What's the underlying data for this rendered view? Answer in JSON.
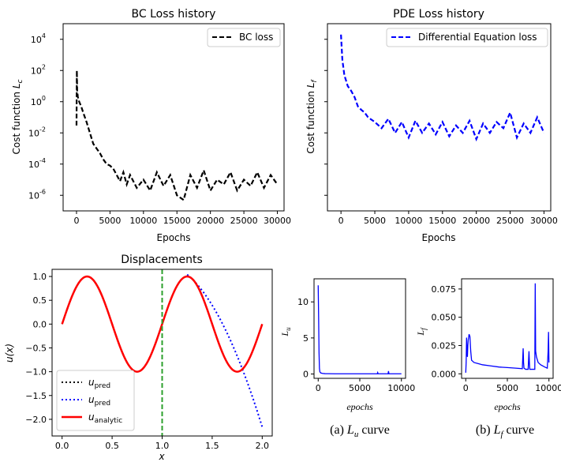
{
  "chart_data": [
    {
      "id": "bc",
      "type": "line",
      "title": "BC Loss history",
      "xlabel": "Epochs",
      "ylabel": "Cost function L_c",
      "yscale": "log",
      "xlim": [
        -2000,
        31000
      ],
      "ylim": [
        1e-07,
        100000.0
      ],
      "xticks": [
        0,
        5000,
        10000,
        15000,
        20000,
        25000,
        30000
      ],
      "ytick_labels": [
        "10",
        "10",
        "10",
        "10",
        "10",
        "10"
      ],
      "ytick_exps": [
        "-6",
        "-4",
        "-2",
        "0",
        "2",
        "4"
      ],
      "ytick_values": [
        1e-06,
        0.0001,
        0.01,
        1,
        100,
        10000
      ],
      "legend_position": "top-right",
      "series": [
        {
          "name": "BC loss",
          "color": "#000000",
          "style": "dashed",
          "x": [
            0,
            50,
            100,
            200,
            400,
            700,
            1000,
            1500,
            2000,
            2500,
            3000,
            3500,
            4000,
            4500,
            5000,
            5500,
            6000,
            6500,
            7000,
            7500,
            8000,
            9000,
            10000,
            11000,
            12000,
            13000,
            14000,
            15000,
            16000,
            17000,
            18000,
            19000,
            20000,
            21000,
            22000,
            23000,
            24000,
            25000,
            26000,
            27000,
            28000,
            29000,
            30000
          ],
          "y": [
            0.03,
            100,
            5,
            2,
            1,
            0.5,
            0.2,
            0.05,
            0.01,
            0.002,
            0.001,
            0.0005,
            0.0002,
            0.0001,
            8e-05,
            5e-05,
            2e-05,
            8e-06,
            3e-05,
            5e-06,
            2e-05,
            3e-06,
            1e-05,
            2e-06,
            3e-05,
            4e-06,
            2e-05,
            1e-06,
            5e-07,
            2e-05,
            3e-06,
            4e-05,
            2e-06,
            1e-05,
            5e-06,
            3e-05,
            2e-06,
            1e-05,
            4e-06,
            3e-05,
            3e-06,
            2e-05,
            5e-06
          ]
        }
      ]
    },
    {
      "id": "pde",
      "type": "line",
      "title": "PDE Loss history",
      "xlabel": "Epochs",
      "ylabel": "Cost function L_f",
      "yscale": "log",
      "xlim": [
        -2000,
        31000
      ],
      "ylim": [
        1e-07,
        100000.0
      ],
      "xticks": [
        0,
        5000,
        10000,
        15000,
        20000,
        25000,
        30000
      ],
      "legend_position": "top-right",
      "series": [
        {
          "name": "Differential Equation loss",
          "color": "#0000ff",
          "style": "dashed",
          "x": [
            0,
            200,
            500,
            1000,
            1500,
            2000,
            2500,
            3000,
            3500,
            4000,
            5000,
            6000,
            7000,
            8000,
            9000,
            10000,
            11000,
            12000,
            13000,
            14000,
            15000,
            16000,
            17000,
            18000,
            19000,
            20000,
            21000,
            22000,
            23000,
            24000,
            25000,
            26000,
            27000,
            28000,
            29000,
            30000
          ],
          "y": [
            20000,
            500,
            50,
            10,
            5,
            2,
            0.5,
            0.3,
            0.2,
            0.1,
            0.05,
            0.02,
            0.08,
            0.01,
            0.05,
            0.005,
            0.06,
            0.01,
            0.04,
            0.008,
            0.05,
            0.006,
            0.03,
            0.01,
            0.06,
            0.004,
            0.04,
            0.01,
            0.05,
            0.02,
            0.2,
            0.005,
            0.04,
            0.01,
            0.1,
            0.01
          ]
        }
      ]
    },
    {
      "id": "disp",
      "type": "line",
      "title": "Displacements",
      "xlabel": "x",
      "ylabel": "u(x)",
      "xlim": [
        -0.1,
        2.1
      ],
      "ylim": [
        -2.35,
        1.15
      ],
      "xticks": [
        0.0,
        0.5,
        1.0,
        1.5,
        2.0
      ],
      "xtick_labels": [
        "0.0",
        "0.5",
        "1.0",
        "1.5",
        "2.0"
      ],
      "yticks": [
        -2.0,
        -1.5,
        -1.0,
        -0.5,
        0.0,
        0.5,
        1.0
      ],
      "ytick_labels": [
        "−2.0",
        "−1.5",
        "−1.0",
        "−0.5",
        "0.0",
        "0.5",
        "1.0"
      ],
      "vline_x": 1.0,
      "vline_color": "#2ca02c",
      "legend_position": "lower-left",
      "series": [
        {
          "name": "u",
          "sub": "pred",
          "color": "#000000",
          "style": "dotted",
          "x_range": [
            0,
            1
          ]
        },
        {
          "name": "u",
          "sub": "pred",
          "color": "#0000ff",
          "style": "dotted",
          "x_range": [
            1.25,
            2.0
          ]
        },
        {
          "name": "u",
          "sub": "analytic",
          "color": "#ff0000",
          "style": "solid",
          "x_range": [
            0,
            2
          ]
        }
      ]
    },
    {
      "id": "lu",
      "type": "line",
      "xlabel": "epochs",
      "ylabel": "L_u",
      "xlim": [
        -500,
        10500
      ],
      "ylim": [
        -0.6,
        13.2
      ],
      "xticks": [
        0,
        5000,
        10000
      ],
      "yticks": [
        0,
        5,
        10
      ],
      "caption_prefix": "(a)",
      "caption_var": "L",
      "caption_sub": "u",
      "caption_suffix": "curve",
      "series": [
        {
          "color": "#0000ff",
          "x": [
            0,
            50,
            100,
            150,
            200,
            300,
            500,
            800,
            1200,
            2000,
            3000,
            4000,
            5000,
            6000,
            7000,
            7100,
            7150,
            7200,
            8000,
            8400,
            8450,
            8500,
            9000,
            10000
          ],
          "y": [
            12.3,
            8,
            3,
            0.8,
            0.3,
            0.15,
            0.08,
            0.05,
            0.04,
            0.03,
            0.03,
            0.03,
            0.03,
            0.03,
            0.03,
            0.03,
            0.2,
            0.03,
            0.03,
            0.03,
            0.4,
            0.03,
            0.03,
            0.03
          ]
        }
      ]
    },
    {
      "id": "lf",
      "type": "line",
      "xlabel": "epochs",
      "ylabel": "L_f",
      "xlim": [
        -500,
        10500
      ],
      "ylim": [
        -0.004,
        0.084
      ],
      "xticks": [
        0,
        5000,
        10000
      ],
      "yticks": [
        0.0,
        0.025,
        0.05,
        0.075
      ],
      "ytick_labels": [
        "0.000",
        "0.025",
        "0.050",
        "0.075"
      ],
      "caption_prefix": "(b)",
      "caption_var": "L",
      "caption_sub": "f",
      "caption_suffix": "curve",
      "series": [
        {
          "color": "#0000ff",
          "x": [
            0,
            50,
            100,
            150,
            200,
            250,
            300,
            400,
            500,
            600,
            700,
            1000,
            1500,
            2000,
            3000,
            4000,
            5000,
            6000,
            6800,
            6900,
            6950,
            7000,
            7200,
            7500,
            7600,
            7650,
            7700,
            8000,
            8200,
            8300,
            8350,
            8400,
            8500,
            8700,
            9000,
            9500,
            9800,
            9900,
            9950,
            10000
          ],
          "y": [
            0.001,
            0.01,
            0.032,
            0.02,
            0.015,
            0.025,
            0.03,
            0.035,
            0.033,
            0.02,
            0.012,
            0.01,
            0.009,
            0.008,
            0.007,
            0.006,
            0.0055,
            0.005,
            0.0045,
            0.0225,
            0.01,
            0.005,
            0.004,
            0.004,
            0.02,
            0.01,
            0.004,
            0.004,
            0.004,
            0.004,
            0.08,
            0.02,
            0.015,
            0.01,
            0.008,
            0.006,
            0.005,
            0.02,
            0.037,
            0.01
          ]
        }
      ]
    }
  ]
}
